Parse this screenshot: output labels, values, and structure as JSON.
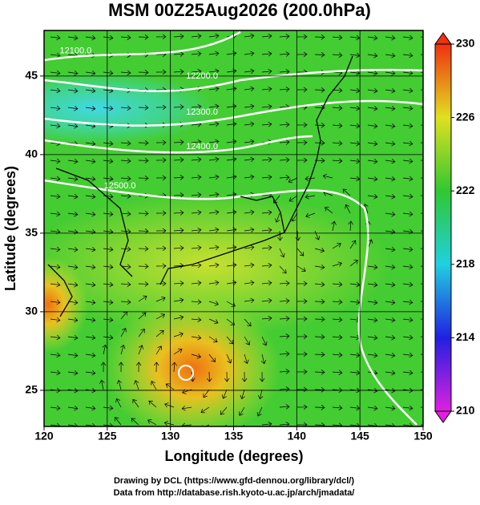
{
  "chart_data": {
    "type": "map",
    "title": "MSM 00Z25Aug2026 (200.0hPa)",
    "x_label": "Longitude (degrees)",
    "y_label": "Latitude  (degrees)",
    "xlim": [
      120,
      150
    ],
    "ylim": [
      22.7,
      47.9
    ],
    "xticks": [
      120,
      125,
      130,
      135,
      140,
      145,
      150
    ],
    "yticks": [
      25,
      30,
      35,
      40,
      45
    ],
    "grid": true,
    "colorbar": {
      "lim": [
        210,
        230
      ],
      "ticks": [
        210,
        214,
        218,
        222,
        226,
        230
      ],
      "colors": [
        "#e020e0",
        "#2020e0",
        "#20d0e0",
        "#30c830",
        "#e0e020",
        "#f03010"
      ]
    },
    "contour_labels": [
      {
        "value": 12100,
        "label": "12100.0"
      },
      {
        "value": 12200,
        "label": "12200.0"
      },
      {
        "value": 12300,
        "label": "12300.0"
      },
      {
        "value": 12400,
        "label": "12400.0"
      },
      {
        "value": 12500,
        "label": "12500.0"
      }
    ],
    "footer": [
      "Drawing by DCL (https://www.gfd-dennou.org/library/dcl/)",
      "Data from http://database.rish.kyoto-u.ac.jp/arch/jmadata/"
    ]
  }
}
